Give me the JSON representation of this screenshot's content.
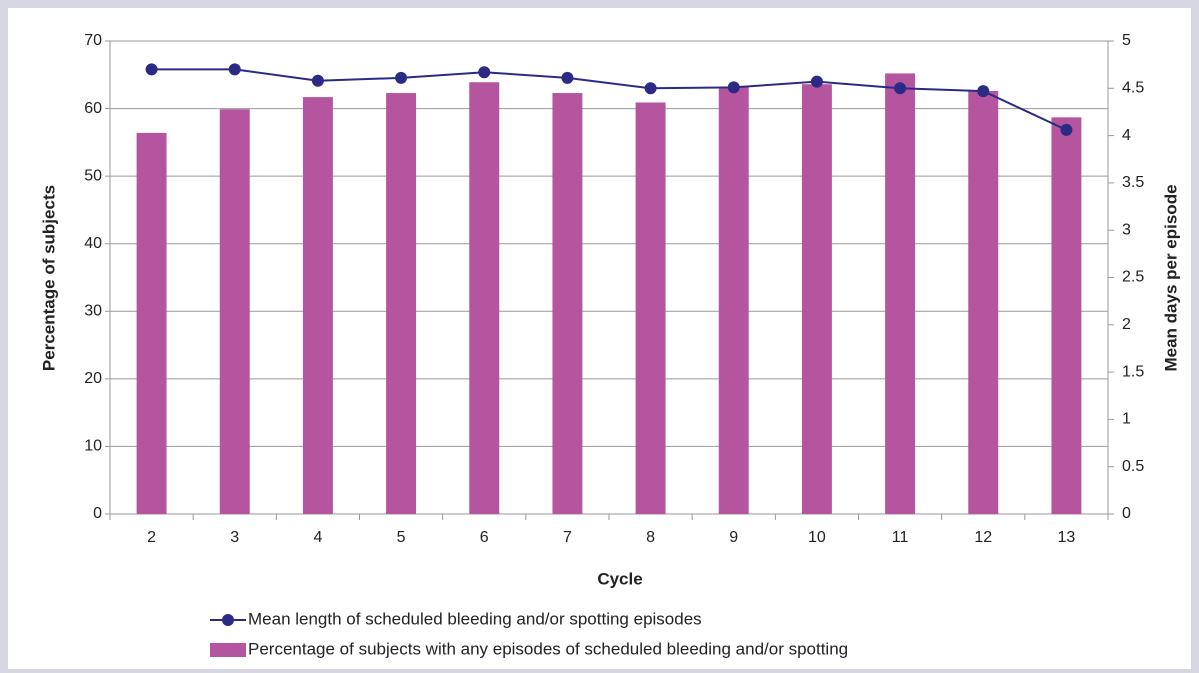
{
  "chart_data": {
    "type": "bar",
    "xlabel": "Cycle",
    "ylabel": "Percentage of subjects",
    "y2label": "Mean days per episode",
    "categories": [
      "2",
      "3",
      "4",
      "5",
      "6",
      "7",
      "8",
      "9",
      "10",
      "11",
      "12",
      "13"
    ],
    "series": [
      {
        "name": "Percentage of subjects with any episodes of scheduled bleeding and/or spotting",
        "type": "bar",
        "color": "#b5559f",
        "values": [
          56.4,
          59.9,
          61.7,
          62.3,
          63.9,
          62.3,
          60.9,
          63.2,
          63.6,
          65.2,
          62.6,
          58.7
        ]
      },
      {
        "name": "Mean length of scheduled bleeding and/or spotting episodes",
        "type": "line",
        "axis": "y2",
        "color": "#2b2b86",
        "values": [
          4.7,
          4.7,
          4.58,
          4.61,
          4.67,
          4.61,
          4.5,
          4.51,
          4.57,
          4.5,
          4.47,
          4.06
        ]
      }
    ],
    "ylim": [
      0,
      70
    ],
    "yticks": [
      0,
      10,
      20,
      30,
      40,
      50,
      60,
      70
    ],
    "y2lim": [
      0,
      5
    ],
    "y2ticks": [
      0,
      0.5,
      1,
      1.5,
      2,
      2.5,
      3,
      3.5,
      4,
      4.5,
      5
    ],
    "grid": true,
    "legend": "bottom"
  }
}
